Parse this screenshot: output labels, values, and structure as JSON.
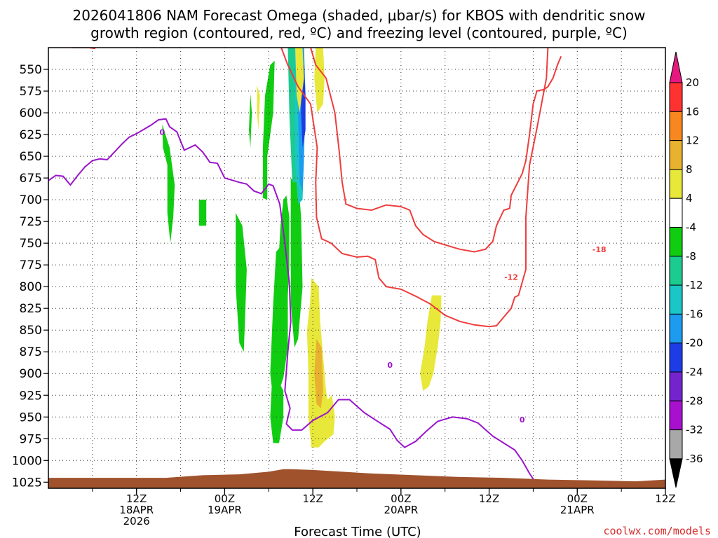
{
  "chart_data": {
    "type": "heatmap",
    "title_lines": [
      "2026041806 NAM Forecast Omega (shaded, μbar/s) for KBOS with dendritic snow",
      "growth region (contoured, red, ºC) and freezing level (contoured, purple, ºC)"
    ],
    "xlabel": "Forecast Time (UTC)",
    "credit": "coolwx.com/models",
    "y_levels": [
      550,
      575,
      600,
      625,
      650,
      675,
      700,
      725,
      750,
      775,
      800,
      825,
      850,
      875,
      900,
      925,
      950,
      975,
      1000,
      1025
    ],
    "ylim": [
      525,
      1032
    ],
    "xlim": [
      6,
      90
    ],
    "x_ticks": [
      {
        "x": 18,
        "lines": [
          "12Z",
          "18APR",
          "2026"
        ]
      },
      {
        "x": 30,
        "lines": [
          "00Z",
          "19APR"
        ]
      },
      {
        "x": 42,
        "lines": [
          "12Z"
        ]
      },
      {
        "x": 54,
        "lines": [
          "00Z",
          "20APR"
        ]
      },
      {
        "x": 66,
        "lines": [
          "12Z"
        ]
      },
      {
        "x": 78,
        "lines": [
          "00Z",
          "21APR"
        ]
      },
      {
        "x": 90,
        "lines": [
          "12Z"
        ]
      }
    ],
    "grid_x": [
      12,
      18,
      24,
      30,
      36,
      42,
      48,
      54,
      60,
      66,
      72,
      78,
      84,
      90
    ],
    "colorbar": {
      "labels": [
        20,
        16,
        12,
        8,
        4,
        -4,
        -8,
        -12,
        -16,
        -20,
        -24,
        -28,
        -32,
        -36
      ],
      "colors": [
        "#ff3232",
        "#f7871e",
        "#e8b12f",
        "#e8e83a",
        "#ffffff",
        "#11cd11",
        "#1ccb8f",
        "#1bc6c6",
        "#1c9bef",
        "#1e3ce6",
        "#7324cd",
        "#a711cd",
        "#a8a8a8"
      ],
      "top_arrow": "#e6187f",
      "bottom_arrow": "#000000"
    },
    "contour_labels": [
      {
        "text": "0",
        "x": 21.5,
        "p": 622,
        "color": "#9a14cb"
      },
      {
        "text": "0",
        "x": 52.5,
        "p": 890,
        "color": "#9a14cb"
      },
      {
        "text": "0",
        "x": 70.5,
        "p": 953,
        "color": "#9a14cb"
      },
      {
        "text": "-12",
        "x": 69.0,
        "p": 789,
        "color": "#ee3d3d"
      },
      {
        "text": "-18",
        "x": 81.0,
        "p": 757,
        "color": "#ee3d3d"
      }
    ],
    "freezing_level": [
      [
        6,
        678
      ],
      [
        7,
        672
      ],
      [
        8,
        673
      ],
      [
        9,
        683
      ],
      [
        10,
        672
      ],
      [
        11,
        662
      ],
      [
        12,
        655
      ],
      [
        13,
        653
      ],
      [
        14,
        654
      ],
      [
        15,
        645
      ],
      [
        16,
        636
      ],
      [
        17,
        628
      ],
      [
        18,
        624
      ],
      [
        19,
        619
      ],
      [
        20,
        614
      ],
      [
        21,
        608
      ],
      [
        22,
        607
      ],
      [
        22.5,
        616
      ],
      [
        23.5,
        622
      ],
      [
        24.5,
        643
      ],
      [
        26,
        637
      ],
      [
        27,
        645
      ],
      [
        28,
        657
      ],
      [
        29,
        658
      ],
      [
        30,
        675
      ],
      [
        32,
        680
      ],
      [
        33,
        682
      ],
      [
        34,
        690
      ],
      [
        35,
        693
      ],
      [
        36,
        682
      ],
      [
        36.6,
        684
      ],
      [
        37.5,
        705
      ],
      [
        38.2,
        750
      ],
      [
        38.8,
        795
      ],
      [
        39,
        840
      ],
      [
        38.6,
        875
      ],
      [
        38.2,
        920
      ],
      [
        38.9,
        940
      ],
      [
        38.4,
        958
      ],
      [
        39.2,
        965
      ],
      [
        40.5,
        965
      ],
      [
        42,
        954
      ],
      [
        44,
        945
      ],
      [
        45.5,
        930
      ],
      [
        47,
        930
      ],
      [
        49,
        945
      ],
      [
        51,
        956
      ],
      [
        52.5,
        964
      ],
      [
        53.5,
        977
      ],
      [
        54.5,
        985
      ],
      [
        56,
        978
      ],
      [
        57.5,
        966
      ],
      [
        59,
        955
      ],
      [
        61,
        950
      ],
      [
        63,
        952
      ],
      [
        64.5,
        957
      ],
      [
        66.5,
        972
      ],
      [
        68,
        980
      ],
      [
        69.5,
        988
      ],
      [
        70.5,
        1000
      ],
      [
        71.5,
        1015
      ],
      [
        72.3,
        1025
      ]
    ],
    "isotherm_minus12": [
      [
        37.7,
        525
      ],
      [
        38.6,
        545
      ],
      [
        40,
        570
      ],
      [
        41.7,
        590
      ],
      [
        42.6,
        640
      ],
      [
        42.4,
        680
      ],
      [
        42.5,
        720
      ],
      [
        43.2,
        745
      ],
      [
        44.5,
        750
      ],
      [
        46,
        762
      ],
      [
        48,
        766
      ],
      [
        49.5,
        765
      ],
      [
        50.5,
        769
      ],
      [
        51,
        790
      ],
      [
        52,
        800
      ],
      [
        54,
        803
      ],
      [
        56,
        811
      ],
      [
        58,
        820
      ],
      [
        60,
        833
      ],
      [
        62,
        840
      ],
      [
        64,
        844
      ],
      [
        66,
        846
      ],
      [
        67,
        845
      ],
      [
        68,
        835
      ],
      [
        69,
        825
      ],
      [
        69.5,
        812
      ],
      [
        70,
        810
      ],
      [
        71,
        780
      ],
      [
        71,
        720
      ],
      [
        71.5,
        660
      ],
      [
        72.5,
        618
      ],
      [
        73.8,
        560
      ],
      [
        74,
        525
      ]
    ],
    "isotherm_minus18": [
      [
        41.7,
        525
      ],
      [
        42.4,
        545
      ],
      [
        43.8,
        560
      ],
      [
        45,
        600
      ],
      [
        45.6,
        645
      ],
      [
        46,
        680
      ],
      [
        46.5,
        705
      ],
      [
        48,
        710
      ],
      [
        50,
        712
      ],
      [
        52,
        706
      ],
      [
        54,
        708
      ],
      [
        55.2,
        712
      ],
      [
        56,
        730
      ],
      [
        57,
        740
      ],
      [
        58.5,
        748
      ],
      [
        60,
        752
      ],
      [
        62,
        757
      ],
      [
        64,
        760
      ],
      [
        65.5,
        757
      ],
      [
        66.5,
        748
      ],
      [
        67,
        730
      ],
      [
        68,
        712
      ],
      [
        68.8,
        710
      ],
      [
        69,
        695
      ],
      [
        70.5,
        670
      ],
      [
        71,
        655
      ],
      [
        71.5,
        625
      ],
      [
        72,
        590
      ],
      [
        72.5,
        575
      ],
      [
        73.5,
        573
      ],
      [
        74,
        570
      ],
      [
        74.7,
        560
      ],
      [
        75.3,
        545
      ],
      [
        75.8,
        535
      ]
    ],
    "isotherm_plus_top": [
      [
        9.2,
        525
      ],
      [
        10.3,
        525
      ],
      [
        11.5,
        525
      ],
      [
        12.4,
        526
      ]
    ],
    "omega_fields": [
      {
        "color": "#11cd11",
        "polygons": [
          [
            [
              21.5,
              613
            ],
            [
              22.5,
              640
            ],
            [
              23.2,
              683
            ],
            [
              23,
              720
            ],
            [
              22.6,
              750
            ],
            [
              22.2,
              715
            ],
            [
              22.2,
              660
            ],
            [
              21.6,
              640
            ]
          ],
          [
            [
              26.5,
              700
            ],
            [
              27.5,
              700
            ],
            [
              27.5,
              730
            ],
            [
              26.5,
              730
            ]
          ],
          [
            [
              31.5,
              715
            ],
            [
              32.4,
              730
            ],
            [
              33,
              780
            ],
            [
              32.8,
              830
            ],
            [
              32.6,
              875
            ],
            [
              32,
              865
            ],
            [
              31.5,
              800
            ],
            [
              31.5,
              740
            ]
          ],
          [
            [
              33.5,
              578
            ],
            [
              33.7,
              600
            ],
            [
              33.5,
              640
            ],
            [
              33.3,
              620
            ]
          ],
          [
            [
              36.2,
              545
            ],
            [
              36.8,
              540
            ],
            [
              36.6,
              600
            ],
            [
              35.8,
              650
            ],
            [
              35.8,
              700
            ],
            [
              35.2,
              698
            ],
            [
              35.2,
              640
            ],
            [
              35.5,
              580
            ]
          ],
          [
            [
              38,
              700
            ],
            [
              38.4,
              695
            ],
            [
              38.8,
              720
            ],
            [
              38.8,
              780
            ],
            [
              38.4,
              840
            ],
            [
              37.8,
              880
            ],
            [
              37.2,
              860
            ],
            [
              37.2,
              790
            ],
            [
              37.6,
              730
            ]
          ],
          [
            [
              37,
              760
            ],
            [
              38,
              750
            ],
            [
              38.6,
              790
            ],
            [
              38.6,
              870
            ],
            [
              38,
              905
            ],
            [
              37.2,
              925
            ],
            [
              36.6,
              930
            ],
            [
              36.2,
              900
            ],
            [
              36.6,
              820
            ]
          ],
          [
            [
              36.4,
              915
            ],
            [
              37.4,
              910
            ],
            [
              38,
              920
            ],
            [
              38,
              950
            ],
            [
              37.4,
              980
            ],
            [
              36.6,
              980
            ],
            [
              36.2,
              950
            ]
          ],
          [
            [
              39,
              676
            ],
            [
              40,
              676
            ],
            [
              40.4,
              720
            ],
            [
              40.6,
              800
            ],
            [
              40,
              860
            ],
            [
              39.5,
              870
            ],
            [
              39,
              820
            ],
            [
              39,
              740
            ]
          ]
        ]
      },
      {
        "color": "#1ccb8f",
        "polygons": [
          [
            [
              38.6,
              525
            ],
            [
              39.6,
              525
            ],
            [
              39.8,
              620
            ],
            [
              40,
              680
            ],
            [
              39.2,
              680
            ],
            [
              38.8,
              600
            ]
          ]
        ]
      },
      {
        "color": "#1bc6c6",
        "polygons": [
          [
            [
              39.5,
              525
            ],
            [
              40.8,
              525
            ],
            [
              40.6,
              600
            ],
            [
              40.8,
              650
            ],
            [
              40.6,
              700
            ],
            [
              40,
              705
            ],
            [
              39.6,
              660
            ]
          ]
        ]
      },
      {
        "color": "#1c9bef",
        "polygons": [
          [
            [
              40,
              525
            ],
            [
              40.8,
              525
            ],
            [
              41,
              580
            ],
            [
              40.8,
              650
            ],
            [
              40.6,
              690
            ],
            [
              40.2,
              680
            ],
            [
              40,
              600
            ]
          ]
        ]
      },
      {
        "color": "#1e3ce6",
        "polygons": [
          [
            [
              40.4,
              550
            ],
            [
              40.8,
              545
            ],
            [
              41,
              580
            ],
            [
              41,
              620
            ],
            [
              40.6,
              640
            ],
            [
              40.4,
              600
            ]
          ]
        ]
      },
      {
        "color": "#e8e83a",
        "polygons": [
          [
            [
              39.6,
              525
            ],
            [
              40.6,
              525
            ],
            [
              40.8,
              560
            ],
            [
              40.2,
              600
            ],
            [
              39.8,
              580
            ]
          ],
          [
            [
              42.4,
              525
            ],
            [
              43.4,
              525
            ],
            [
              43.6,
              560
            ],
            [
              43.4,
              590
            ],
            [
              42.6,
              600
            ],
            [
              42.2,
              560
            ]
          ],
          [
            [
              34.4,
              568
            ],
            [
              34.8,
              580
            ],
            [
              34.6,
              620
            ],
            [
              34.4,
              600
            ]
          ],
          [
            [
              41.8,
              790
            ],
            [
              42.8,
              800
            ],
            [
              43,
              840
            ],
            [
              43.4,
              880
            ],
            [
              43.8,
              920
            ],
            [
              44,
              930
            ],
            [
              44.6,
              925
            ],
            [
              45,
              950
            ],
            [
              44.8,
              970
            ],
            [
              43.6,
              978
            ],
            [
              42.8,
              985
            ],
            [
              41.8,
              985
            ],
            [
              41.4,
              950
            ],
            [
              41.4,
              900
            ],
            [
              41.2,
              850
            ],
            [
              41.6,
              820
            ]
          ],
          [
            [
              58.2,
              810
            ],
            [
              59.5,
              810
            ],
            [
              59.4,
              840
            ],
            [
              59,
              870
            ],
            [
              58.4,
              900
            ],
            [
              57.8,
              915
            ],
            [
              57,
              920
            ],
            [
              56.6,
              900
            ],
            [
              57.2,
              870
            ],
            [
              57.6,
              840
            ]
          ]
        ]
      },
      {
        "color": "#e8b12f",
        "polygons": [
          [
            [
              42.5,
              860
            ],
            [
              43.2,
              870
            ],
            [
              43.4,
              920
            ],
            [
              43.1,
              940
            ],
            [
              42.5,
              935
            ],
            [
              42.2,
              900
            ]
          ]
        ]
      }
    ],
    "surface_profile": [
      [
        6,
        1020
      ],
      [
        14,
        1020
      ],
      [
        22,
        1020
      ],
      [
        27,
        1017
      ],
      [
        32,
        1016
      ],
      [
        36,
        1013
      ],
      [
        38,
        1010
      ],
      [
        39,
        1010
      ],
      [
        42,
        1011
      ],
      [
        46,
        1013
      ],
      [
        50,
        1015
      ],
      [
        56,
        1017
      ],
      [
        62,
        1019
      ],
      [
        68,
        1020
      ],
      [
        74,
        1022
      ],
      [
        80,
        1023
      ],
      [
        86,
        1024
      ],
      [
        90,
        1022
      ]
    ],
    "surface_color": "#a0522d"
  }
}
